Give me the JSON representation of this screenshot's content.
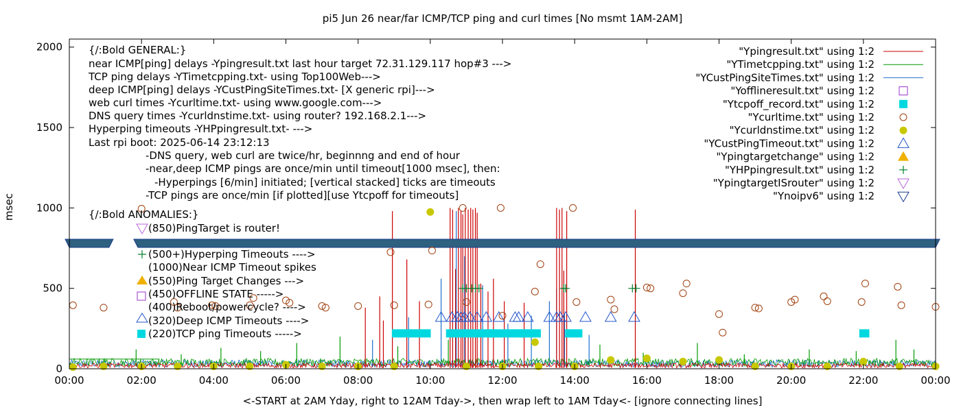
{
  "chart_data": {
    "type": "line",
    "title": "pi5 Jun 26  near/far ICMP/TCP ping and curl times [No msmt 1AM-2AM]",
    "xlabel": "<-START at 2AM Yday, right to 12AM Tday->, then wrap left to 1AM Tday<- [ignore connecting lines]",
    "ylabel": "msec",
    "xlim": [
      0,
      24
    ],
    "ylim": [
      0,
      2050
    ],
    "x_ticks": [
      {
        "value": 0,
        "label": "00:00"
      },
      {
        "value": 2,
        "label": "02:00"
      },
      {
        "value": 4,
        "label": "04:00"
      },
      {
        "value": 6,
        "label": "06:00"
      },
      {
        "value": 8,
        "label": "08:00"
      },
      {
        "value": 10,
        "label": "10:00"
      },
      {
        "value": 12,
        "label": "12:00"
      },
      {
        "value": 14,
        "label": "14:00"
      },
      {
        "value": 16,
        "label": "16:00"
      },
      {
        "value": 18,
        "label": "18:00"
      },
      {
        "value": 20,
        "label": "20:00"
      },
      {
        "value": 22,
        "label": "22:00"
      },
      {
        "value": 24,
        "label": "00:00"
      }
    ],
    "y_ticks": [
      {
        "value": 0,
        "label": "0"
      },
      {
        "value": 500,
        "label": "500"
      },
      {
        "value": 1000,
        "label": "1000"
      },
      {
        "value": 1500,
        "label": "1500"
      },
      {
        "value": 2000,
        "label": "2000"
      }
    ],
    "grid": false,
    "legend_position": "top-right",
    "legend": [
      {
        "label": "\"Ypingresult.txt\" using 1:2",
        "marker": "line",
        "color": "#cc0000"
      },
      {
        "label": "\"YTimetcpping.txt\" using 1:2",
        "marker": "line",
        "color": "#009900"
      },
      {
        "label": "\"YCustPingSiteTimes.txt\" using 1:2",
        "marker": "line",
        "color": "#1e6fcc"
      },
      {
        "label": "\"Yofflineresult.txt\" using 1:2",
        "marker": "open-square",
        "color": "#9933cc"
      },
      {
        "label": "\"Ytcpoff_record.txt\" using 1:2",
        "marker": "filled-square",
        "color": "#00d8e0"
      },
      {
        "label": "\"Ycurltime.txt\" using 1:2",
        "marker": "open-circle",
        "color": "#a0400e"
      },
      {
        "label": "\"Ycurldnstime.txt\" using 1:2",
        "marker": "filled-circle",
        "color": "#c8c800"
      },
      {
        "label": "\"YCustPingTimeout.txt\" using 1:2",
        "marker": "open-triangle",
        "color": "#2255cc"
      },
      {
        "label": "\"Ypingtargetchange\" using 1:2",
        "marker": "filled-triangle",
        "color": "#f0b000"
      },
      {
        "label": "\"YHPpingresult.txt\" using 1:2",
        "marker": "plus",
        "color": "#00802a"
      },
      {
        "label": "\"YpingtargetISrouter\" using 1:2",
        "marker": "open-triangle-down",
        "color": "#bb66dd"
      },
      {
        "label": "\"Ynoipv6\" using 1:2",
        "marker": "open-triangle-down",
        "color": "#1a3d8a"
      }
    ],
    "annotations": [
      "{/:Bold GENERAL:}",
      "near ICMP[ping] delays -Ypingresult.txt last hour target 72.31.129.117 hop#3 --->",
      "TCP ping delays -YTimetcpping.txt- using Top100Web--->",
      "deep ICMP[ping] delays -YCustPingSiteTimes.txt- [X generic rpi]--->",
      "web curl times -Ycurltime.txt- using www.google.com--->",
      "DNS query times -Ycurldnstime.txt- using router? 192.168.2.1--->",
      "Hyperping timeouts -YHPpingresult.txt- --->",
      "Last rpi boot: 2025-06-14 23:12:13",
      "-DNS query, web curl are twice/hr, beginnng and end of hour",
      "-near,deep ICMP pings are once/min until timeout[1000 msec], then:",
      "-Hyperpings [6/min] initiated; [vertical stacked] ticks are timeouts",
      "-TCP pings are once/min [if plotted][use Ytcpoff for timeouts]",
      "{/:Bold ANOMALIES:}",
      "(850)PingTarget is router!",
      "(500+)Hyperping Timeouts ---->",
      "(1000)Near ICMP Timeout spikes",
      "(550)Ping Target Changes --->",
      "(450)OFFLINE STATE ----->",
      "(400)Reboot/powercycle? ---->",
      "(320)Deep ICMP Timeouts ---->",
      "(220)TCP ping Timeouts ----->"
    ],
    "noipv6_band": {
      "y": 780,
      "x_ranges": [
        [
          0,
          1.1
        ],
        [
          1.9,
          24
        ]
      ]
    },
    "curl_times": [
      [
        0.1,
        395
      ],
      [
        0.95,
        380
      ],
      [
        2.0,
        995
      ],
      [
        2.9,
        415
      ],
      [
        3.0,
        380
      ],
      [
        3.95,
        395
      ],
      [
        4.05,
        390
      ],
      [
        5.0,
        395
      ],
      [
        5.1,
        440
      ],
      [
        6.0,
        425
      ],
      [
        6.1,
        410
      ],
      [
        7.0,
        390
      ],
      [
        7.1,
        380
      ],
      [
        8.0,
        390
      ],
      [
        8.9,
        725
      ],
      [
        9.0,
        395
      ],
      [
        9.95,
        400
      ],
      [
        10.05,
        735
      ],
      [
        10.9,
        1000
      ],
      [
        11.0,
        415
      ],
      [
        11.95,
        1000
      ],
      [
        12.0,
        330
      ],
      [
        12.9,
        480
      ],
      [
        13.05,
        650
      ],
      [
        13.95,
        1000
      ],
      [
        14.05,
        415
      ],
      [
        15.0,
        430
      ],
      [
        15.1,
        370
      ],
      [
        16.0,
        505
      ],
      [
        16.1,
        500
      ],
      [
        17.0,
        470
      ],
      [
        17.1,
        530
      ],
      [
        18.0,
        340
      ],
      [
        18.1,
        225
      ],
      [
        19.0,
        380
      ],
      [
        19.1,
        375
      ],
      [
        20.0,
        415
      ],
      [
        20.1,
        430
      ],
      [
        20.9,
        450
      ],
      [
        21.0,
        420
      ],
      [
        21.95,
        415
      ],
      [
        22.05,
        530
      ],
      [
        22.95,
        510
      ],
      [
        23.05,
        395
      ],
      [
        24.0,
        385
      ]
    ],
    "dns_times": [
      [
        0.1,
        10
      ],
      [
        0.95,
        15
      ],
      [
        2.0,
        15
      ],
      [
        3.0,
        15
      ],
      [
        4.0,
        15
      ],
      [
        5.0,
        15
      ],
      [
        6.0,
        25
      ],
      [
        7.0,
        15
      ],
      [
        8.0,
        15
      ],
      [
        9.0,
        15
      ],
      [
        10.0,
        975
      ],
      [
        11.0,
        15
      ],
      [
        12.0,
        15
      ],
      [
        12.9,
        165
      ],
      [
        13.0,
        15
      ],
      [
        14.0,
        15
      ],
      [
        15.0,
        55
      ],
      [
        16.0,
        65
      ],
      [
        17.0,
        45
      ],
      [
        18.0,
        55
      ],
      [
        19.0,
        15
      ],
      [
        20.0,
        15
      ],
      [
        21.0,
        15
      ],
      [
        22.0,
        45
      ],
      [
        23.0,
        15
      ],
      [
        24.0,
        15
      ]
    ],
    "deep_icmp_timeouts": [
      [
        10.3,
        320
      ],
      [
        10.6,
        320
      ],
      [
        10.75,
        320
      ],
      [
        10.85,
        320
      ],
      [
        10.95,
        320
      ],
      [
        11.1,
        320
      ],
      [
        11.3,
        320
      ],
      [
        11.55,
        320
      ],
      [
        11.9,
        320
      ],
      [
        12.35,
        320
      ],
      [
        12.45,
        320
      ],
      [
        12.7,
        320
      ],
      [
        13.3,
        320
      ],
      [
        13.5,
        320
      ],
      [
        13.6,
        320
      ],
      [
        13.75,
        320
      ],
      [
        14.3,
        320
      ],
      [
        15.0,
        320
      ],
      [
        15.65,
        320
      ]
    ],
    "tcp_timeouts": [
      [
        9.05,
        9.9,
        220
      ],
      [
        10.55,
        11.65,
        220
      ],
      [
        11.75,
        12.5,
        220
      ],
      [
        12.6,
        12.95,
        220
      ],
      [
        13.85,
        14.1,
        220
      ],
      [
        22.0,
        22.05,
        220
      ]
    ],
    "hyperping_timeouts": [
      [
        10.9,
        500
      ],
      [
        11.0,
        500
      ],
      [
        11.15,
        500
      ],
      [
        11.25,
        500
      ],
      [
        11.35,
        500
      ],
      [
        13.7,
        500
      ],
      [
        13.75,
        500
      ],
      [
        15.6,
        500
      ],
      [
        15.7,
        500
      ]
    ],
    "near_icmp_spikes": [
      [
        8.2,
        380
      ],
      [
        8.6,
        450
      ],
      [
        8.7,
        300
      ],
      [
        8.95,
        980
      ],
      [
        9.35,
        680
      ],
      [
        9.7,
        420
      ],
      [
        10.55,
        1000
      ],
      [
        10.62,
        990
      ],
      [
        10.7,
        620
      ],
      [
        10.78,
        1000
      ],
      [
        10.85,
        980
      ],
      [
        10.9,
        960
      ],
      [
        10.97,
        1000
      ],
      [
        11.05,
        990
      ],
      [
        11.12,
        1000
      ],
      [
        11.18,
        990
      ],
      [
        11.25,
        1000
      ],
      [
        11.3,
        970
      ],
      [
        11.4,
        530
      ],
      [
        11.6,
        480
      ],
      [
        11.75,
        560
      ],
      [
        12.05,
        420
      ],
      [
        12.6,
        410
      ],
      [
        13.5,
        1000
      ],
      [
        13.58,
        990
      ],
      [
        13.65,
        1000
      ],
      [
        13.7,
        610
      ],
      [
        13.78,
        980
      ],
      [
        15.68,
        990
      ]
    ],
    "deep_icmp_spikes": [
      [
        8.4,
        180
      ],
      [
        9.4,
        320
      ],
      [
        10.3,
        560
      ],
      [
        10.72,
        980
      ],
      [
        10.95,
        700
      ],
      [
        11.45,
        520
      ],
      [
        12.15,
        280
      ],
      [
        12.8,
        330
      ],
      [
        13.3,
        420
      ],
      [
        13.5,
        500
      ],
      [
        13.72,
        340
      ],
      [
        14.4,
        210
      ]
    ],
    "tcp_spikes": [
      [
        0.95,
        60
      ],
      [
        1.85,
        120
      ],
      [
        3.1,
        90
      ],
      [
        4.2,
        130
      ],
      [
        5.3,
        110
      ],
      [
        6.3,
        160
      ],
      [
        7.5,
        200
      ],
      [
        9.1,
        140
      ],
      [
        10.5,
        180
      ],
      [
        14.7,
        150
      ],
      [
        15.9,
        100
      ],
      [
        17.4,
        160
      ],
      [
        18.7,
        90
      ],
      [
        20.5,
        120
      ],
      [
        21.8,
        110
      ],
      [
        22.9,
        180
      ],
      [
        23.4,
        120
      ]
    ]
  }
}
